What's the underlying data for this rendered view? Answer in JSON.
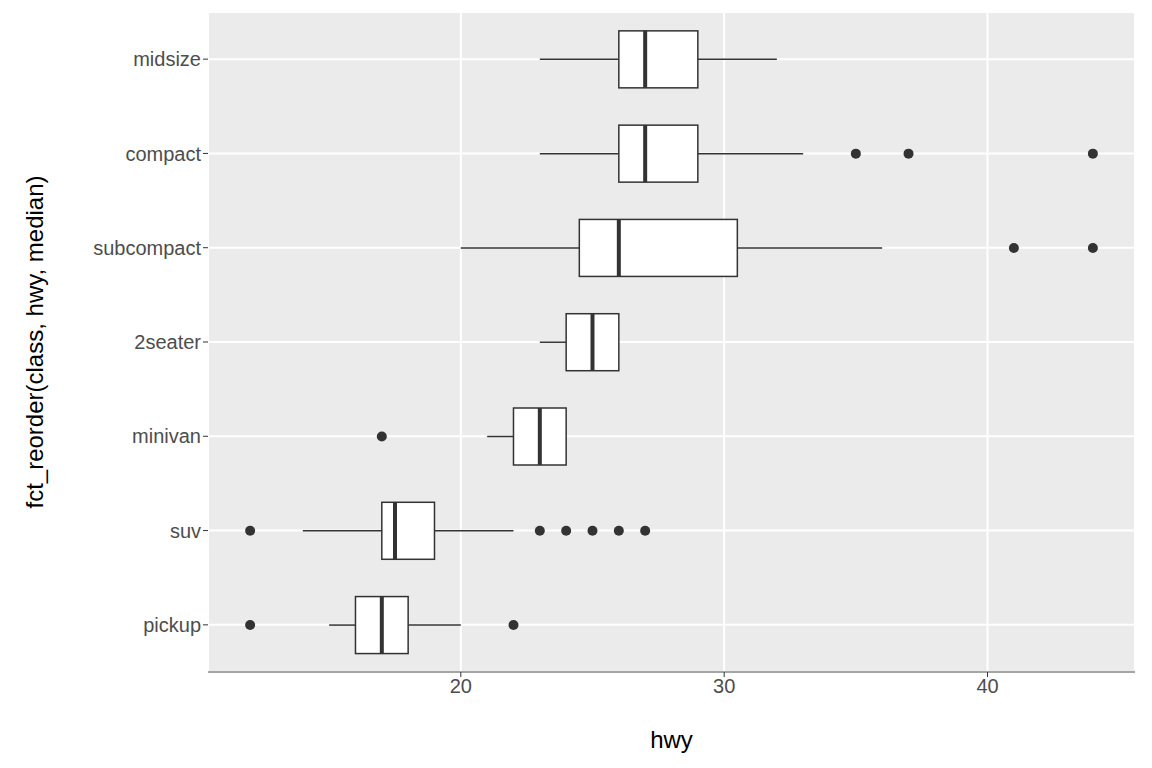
{
  "chart_data": {
    "type": "boxplot",
    "orientation": "horizontal",
    "x_label": "hwy",
    "y_label": "fct_reorder(class, hwy, median)",
    "categories": [
      "midsize",
      "compact",
      "subcompact",
      "2seater",
      "minivan",
      "suv",
      "pickup"
    ],
    "min": [
      23,
      23,
      20,
      23,
      21,
      14,
      15
    ],
    "q1": [
      26,
      26,
      24.5,
      24,
      22,
      17,
      16
    ],
    "median": [
      27,
      27,
      26,
      25,
      23,
      17.5,
      17
    ],
    "q3": [
      29,
      29,
      30.5,
      26,
      24,
      19,
      18
    ],
    "max": [
      32,
      33,
      36,
      26,
      24,
      22,
      20
    ],
    "outliers": [
      [],
      [
        35,
        37,
        44
      ],
      [
        41,
        44
      ],
      [],
      [
        17
      ],
      [
        12,
        23,
        24,
        25,
        26,
        27
      ],
      [
        12,
        22
      ]
    ],
    "xlim": [
      10.4,
      45.6
    ],
    "xticks": [
      20,
      30,
      40
    ],
    "grid": true,
    "color": "#ffffff"
  }
}
